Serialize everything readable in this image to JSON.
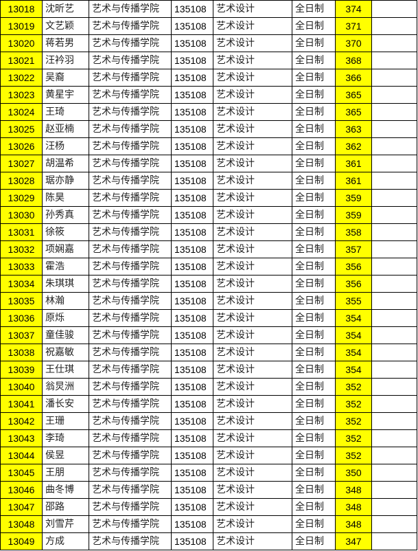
{
  "colors": {
    "highlight": "#ffff00",
    "border": "#000000"
  },
  "rows": [
    [
      "13018",
      "沈昕艺",
      "艺术与传播学院",
      "135108",
      "艺术设计",
      "全日制",
      "374"
    ],
    [
      "13019",
      "文艺颖",
      "艺术与传播学院",
      "135108",
      "艺术设计",
      "全日制",
      "371"
    ],
    [
      "13020",
      "蒋若男",
      "艺术与传播学院",
      "135108",
      "艺术设计",
      "全日制",
      "370"
    ],
    [
      "13021",
      "汪衿羽",
      "艺术与传播学院",
      "135108",
      "艺术设计",
      "全日制",
      "368"
    ],
    [
      "13022",
      "吴裔",
      "艺术与传播学院",
      "135108",
      "艺术设计",
      "全日制",
      "366"
    ],
    [
      "13023",
      "黄星宇",
      "艺术与传播学院",
      "135108",
      "艺术设计",
      "全日制",
      "365"
    ],
    [
      "13024",
      "王琦",
      "艺术与传播学院",
      "135108",
      "艺术设计",
      "全日制",
      "365"
    ],
    [
      "13025",
      "赵亚楠",
      "艺术与传播学院",
      "135108",
      "艺术设计",
      "全日制",
      "363"
    ],
    [
      "13026",
      "汪杨",
      "艺术与传播学院",
      "135108",
      "艺术设计",
      "全日制",
      "362"
    ],
    [
      "13027",
      "胡温希",
      "艺术与传播学院",
      "135108",
      "艺术设计",
      "全日制",
      "361"
    ],
    [
      "13028",
      "琚亦静",
      "艺术与传播学院",
      "135108",
      "艺术设计",
      "全日制",
      "361"
    ],
    [
      "13029",
      "陈昊",
      "艺术与传播学院",
      "135108",
      "艺术设计",
      "全日制",
      "359"
    ],
    [
      "13030",
      "孙秀真",
      "艺术与传播学院",
      "135108",
      "艺术设计",
      "全日制",
      "359"
    ],
    [
      "13031",
      "徐筱",
      "艺术与传播学院",
      "135108",
      "艺术设计",
      "全日制",
      "358"
    ],
    [
      "13032",
      "项娴嘉",
      "艺术与传播学院",
      "135108",
      "艺术设计",
      "全日制",
      "357"
    ],
    [
      "13033",
      "霍浩",
      "艺术与传播学院",
      "135108",
      "艺术设计",
      "全日制",
      "356"
    ],
    [
      "13034",
      "朱琪琪",
      "艺术与传播学院",
      "135108",
      "艺术设计",
      "全日制",
      "356"
    ],
    [
      "13035",
      "林瀚",
      "艺术与传播学院",
      "135108",
      "艺术设计",
      "全日制",
      "355"
    ],
    [
      "13036",
      "原烁",
      "艺术与传播学院",
      "135108",
      "艺术设计",
      "全日制",
      "354"
    ],
    [
      "13037",
      "童佳骏",
      "艺术与传播学院",
      "135108",
      "艺术设计",
      "全日制",
      "354"
    ],
    [
      "13038",
      "祝嘉敏",
      "艺术与传播学院",
      "135108",
      "艺术设计",
      "全日制",
      "354"
    ],
    [
      "13039",
      "王仕琪",
      "艺术与传播学院",
      "135108",
      "艺术设计",
      "全日制",
      "354"
    ],
    [
      "13040",
      "翁炅洲",
      "艺术与传播学院",
      "135108",
      "艺术设计",
      "全日制",
      "352"
    ],
    [
      "13041",
      "潘长安",
      "艺术与传播学院",
      "135108",
      "艺术设计",
      "全日制",
      "352"
    ],
    [
      "13042",
      "王珊",
      "艺术与传播学院",
      "135108",
      "艺术设计",
      "全日制",
      "352"
    ],
    [
      "13043",
      "李琦",
      "艺术与传播学院",
      "135108",
      "艺术设计",
      "全日制",
      "352"
    ],
    [
      "13044",
      "侯昱",
      "艺术与传播学院",
      "135108",
      "艺术设计",
      "全日制",
      "352"
    ],
    [
      "13045",
      "王朋",
      "艺术与传播学院",
      "135108",
      "艺术设计",
      "全日制",
      "350"
    ],
    [
      "13046",
      "曲冬博",
      "艺术与传播学院",
      "135108",
      "艺术设计",
      "全日制",
      "348"
    ],
    [
      "13047",
      "邵路",
      "艺术与传播学院",
      "135108",
      "艺术设计",
      "全日制",
      "348"
    ],
    [
      "13048",
      "刘雪芹",
      "艺术与传播学院",
      "135108",
      "艺术设计",
      "全日制",
      "348"
    ],
    [
      "13049",
      "方成",
      "艺术与传播学院",
      "135108",
      "艺术设计",
      "全日制",
      "347"
    ]
  ]
}
